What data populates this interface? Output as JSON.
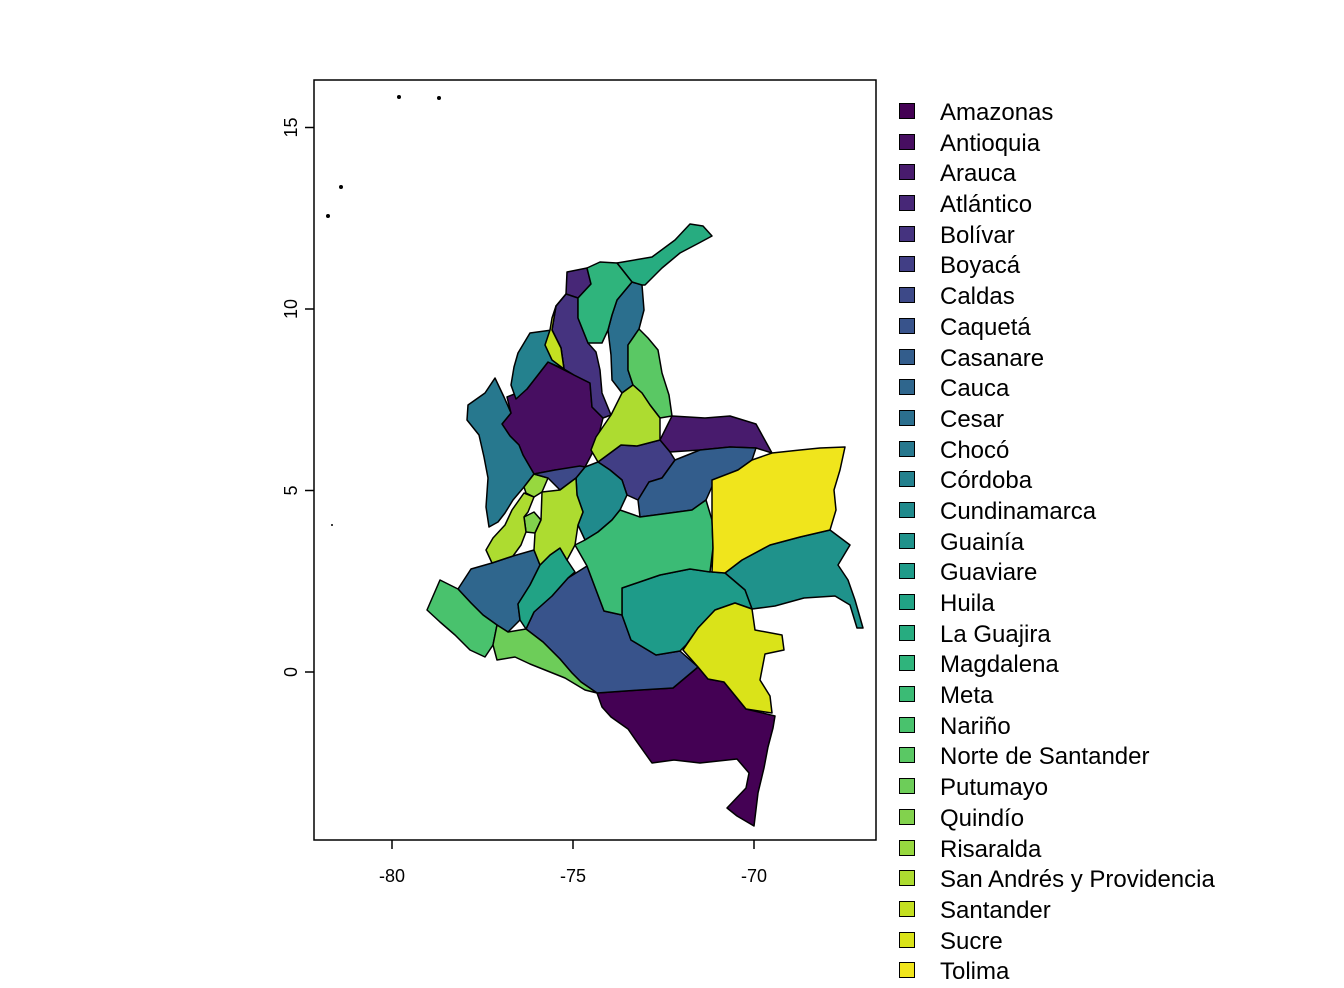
{
  "x_axis": {
    "ticks": [
      {
        "value": -80,
        "label": "-80"
      },
      {
        "value": -75,
        "label": "-75"
      },
      {
        "value": -70,
        "label": "-70"
      }
    ]
  },
  "y_axis": {
    "ticks": [
      {
        "value": 0,
        "label": "0"
      },
      {
        "value": 5,
        "label": "5"
      },
      {
        "value": 10,
        "label": "10"
      },
      {
        "value": 15,
        "label": "15"
      }
    ]
  },
  "legend": {
    "items": [
      {
        "label": "Amazonas",
        "color": "#440154"
      },
      {
        "label": "Antioquia",
        "color": "#470E61"
      },
      {
        "label": "Arauca",
        "color": "#481B6D"
      },
      {
        "label": "Atlántico",
        "color": "#472777"
      },
      {
        "label": "Bolívar",
        "color": "#45337F"
      },
      {
        "label": "Boyacá",
        "color": "#413E85"
      },
      {
        "label": "Caldas",
        "color": "#3D4988"
      },
      {
        "label": "Caquetá",
        "color": "#38538B"
      },
      {
        "label": "Casanare",
        "color": "#335D8C"
      },
      {
        "label": "Cauca",
        "color": "#2F668D"
      },
      {
        "label": "Cesar",
        "color": "#2B6F8E"
      },
      {
        "label": "Chocó",
        "color": "#27788E"
      },
      {
        "label": "Córdoba",
        "color": "#24818E"
      },
      {
        "label": "Cundinamarca",
        "color": "#208A8C"
      },
      {
        "label": "Guainía",
        "color": "#1F928B"
      },
      {
        "label": "Guaviare",
        "color": "#1E9B89"
      },
      {
        "label": "Huila",
        "color": "#21A385"
      },
      {
        "label": "La Guajira",
        "color": "#27AC80"
      },
      {
        "label": "Magdalena",
        "color": "#2FB47C"
      },
      {
        "label": "Meta",
        "color": "#3BBB75"
      },
      {
        "label": "Nariño",
        "color": "#49C26D"
      },
      {
        "label": "Norte de Santander",
        "color": "#5AC864"
      },
      {
        "label": "Putumayo",
        "color": "#6DCD59"
      },
      {
        "label": "Quindío",
        "color": "#82D24D"
      },
      {
        "label": "Risaralda",
        "color": "#97D83F"
      },
      {
        "label": "San Andrés y Providencia",
        "color": "#ADDC30"
      },
      {
        "label": "Santander",
        "color": "#C4E021"
      },
      {
        "label": "Sucre",
        "color": "#DAE319"
      },
      {
        "label": "Tolima",
        "color": "#F0E51C"
      }
    ]
  }
}
